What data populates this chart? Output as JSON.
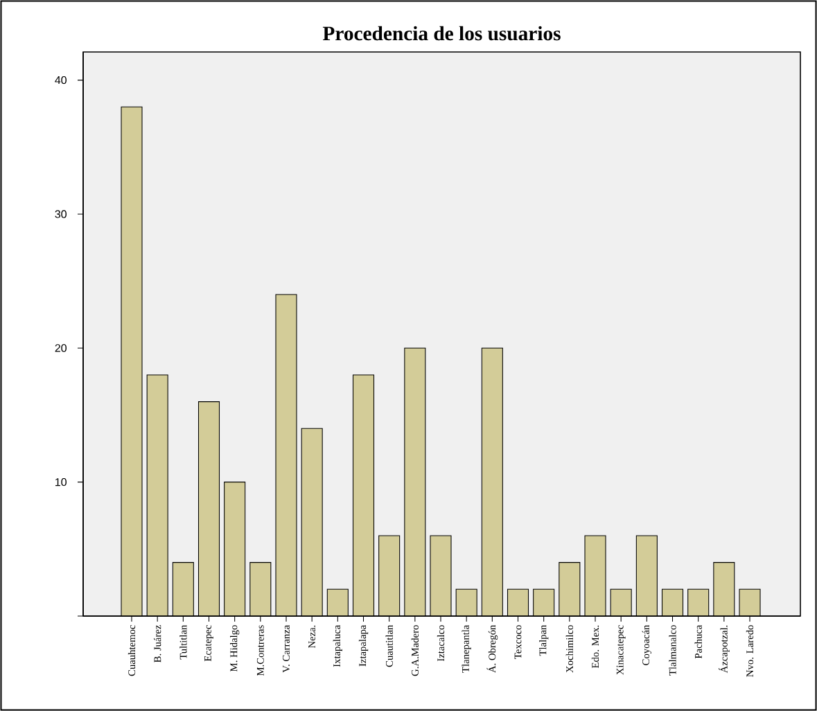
{
  "chart_data": {
    "type": "bar",
    "title": "Procedencia de los usuarios",
    "categories": [
      "Cuauhtemoc",
      "B. Juárez",
      "Tultitlan",
      "Ecatepec",
      "M. Hidalgo",
      "M.Contreras",
      "V. Carranza",
      "Neza.",
      "Ixtapaluca",
      "Iztapalapa",
      "Cuautitlan",
      "G.A.Madero",
      "Iztacalco",
      "Tlanepantla",
      "Á. Obregón",
      "Texcoco",
      "Tlalpan",
      "Xochimilco",
      "Edo. Mex.",
      "Xinacatepec",
      "Coyoacán",
      "Tlalmanalco",
      "Pachuca",
      "Ázcapotzal.",
      "Nvo. Laredo"
    ],
    "values": [
      38,
      18,
      4,
      16,
      10,
      4,
      24,
      14,
      2,
      18,
      6,
      20,
      6,
      2,
      20,
      2,
      2,
      4,
      6,
      2,
      6,
      2,
      2,
      4,
      2
    ],
    "color": "#d3cc98",
    "ylim": [
      0,
      42.1
    ],
    "yticks": [
      {
        "value": 0,
        "label": null
      },
      10,
      20,
      30,
      40
    ],
    "grid": false
  }
}
